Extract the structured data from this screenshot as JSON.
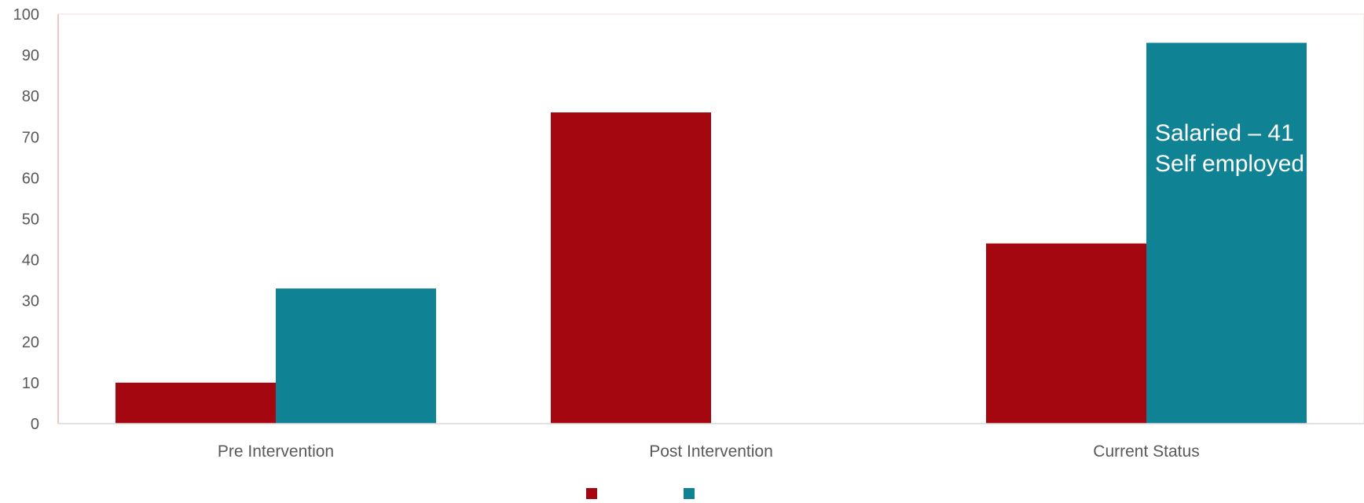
{
  "chart_data": {
    "type": "bar",
    "categories": [
      "Pre Intervention",
      "Post Intervention",
      "Current Status"
    ],
    "series": [
      {
        "values": [
          10,
          76,
          44
        ],
        "color": "#a50710"
      },
      {
        "values": [
          33,
          null,
          93
        ],
        "color": "#0f8294"
      }
    ],
    "ylim": [
      0,
      100
    ],
    "yticks": [
      0,
      10,
      20,
      30,
      40,
      50,
      60,
      70,
      80,
      90,
      100
    ],
    "grid": false,
    "legend": "bottom-center",
    "annotation": {
      "lines": [
        "Salaried – 41",
        "Self employed"
      ],
      "category": "Current Status",
      "series_index": 1
    },
    "title": "",
    "xlabel": "",
    "ylabel": ""
  }
}
